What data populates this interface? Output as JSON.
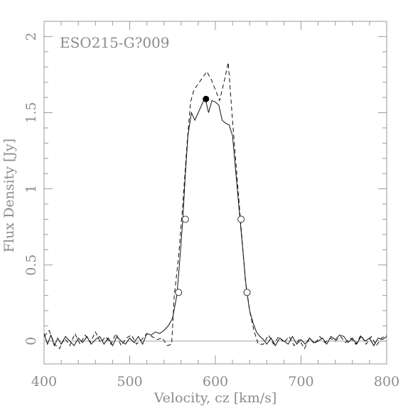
{
  "chart_data": {
    "type": "line",
    "title": "ESO215-G?009",
    "xlabel": "Velocity, cz [km/s]",
    "ylabel": "Flux Density [Jy]",
    "xlim": [
      400,
      800
    ],
    "ylim": [
      -0.15,
      2.1
    ],
    "x_ticks": [
      400,
      500,
      600,
      700,
      800
    ],
    "y_ticks": [
      0,
      0.5,
      1,
      1.5,
      2
    ],
    "grid": false,
    "series": [
      {
        "style": "solid",
        "points": [
          [
            400,
            0.05
          ],
          [
            404,
            -0.02
          ],
          [
            408,
            0.04
          ],
          [
            412,
            -0.03
          ],
          [
            416,
            0.02
          ],
          [
            420,
            -0.02
          ],
          [
            425,
            0.03
          ],
          [
            430,
            0.0
          ],
          [
            435,
            -0.03
          ],
          [
            440,
            0.02
          ],
          [
            445,
            -0.01
          ],
          [
            450,
            0.03
          ],
          [
            455,
            -0.02
          ],
          [
            460,
            0.01
          ],
          [
            465,
            0.03
          ],
          [
            470,
            -0.02
          ],
          [
            475,
            0.02
          ],
          [
            480,
            -0.03
          ],
          [
            485,
            0.03
          ],
          [
            490,
            0.0
          ],
          [
            495,
            -0.02
          ],
          [
            500,
            0.02
          ],
          [
            505,
            -0.01
          ],
          [
            510,
            0.03
          ],
          [
            515,
            -0.02
          ],
          [
            520,
            0.05
          ],
          [
            525,
            0.04
          ],
          [
            530,
            0.06
          ],
          [
            535,
            0.05
          ],
          [
            540,
            0.07
          ],
          [
            545,
            0.1
          ],
          [
            550,
            0.15
          ],
          [
            555,
            0.3
          ],
          [
            558,
            0.5
          ],
          [
            562,
            0.8
          ],
          [
            565,
            1.1
          ],
          [
            568,
            1.35
          ],
          [
            572,
            1.5
          ],
          [
            576,
            1.45
          ],
          [
            580,
            1.5
          ],
          [
            584,
            1.55
          ],
          [
            588,
            1.6
          ],
          [
            592,
            1.5
          ],
          [
            596,
            1.58
          ],
          [
            600,
            1.57
          ],
          [
            604,
            1.55
          ],
          [
            608,
            1.45
          ],
          [
            612,
            1.43
          ],
          [
            616,
            1.42
          ],
          [
            620,
            1.35
          ],
          [
            624,
            1.1
          ],
          [
            628,
            0.85
          ],
          [
            632,
            0.6
          ],
          [
            636,
            0.35
          ],
          [
            640,
            0.2
          ],
          [
            644,
            0.12
          ],
          [
            648,
            0.06
          ],
          [
            652,
            0.03
          ],
          [
            656,
            0.01
          ],
          [
            660,
            -0.02
          ],
          [
            665,
            0.02
          ],
          [
            670,
            -0.03
          ],
          [
            675,
            0.02
          ],
          [
            680,
            0.0
          ],
          [
            685,
            -0.02
          ],
          [
            690,
            0.03
          ],
          [
            695,
            -0.02
          ],
          [
            700,
            0.01
          ],
          [
            705,
            -0.02
          ],
          [
            710,
            0.02
          ],
          [
            715,
            -0.01
          ],
          [
            720,
            0.0
          ],
          [
            725,
            0.02
          ],
          [
            730,
            -0.02
          ],
          [
            735,
            0.03
          ],
          [
            740,
            0.01
          ],
          [
            745,
            0.04
          ],
          [
            750,
            0.03
          ],
          [
            755,
            -0.01
          ],
          [
            760,
            0.02
          ],
          [
            765,
            -0.02
          ],
          [
            770,
            0.03
          ],
          [
            775,
            0.0
          ],
          [
            780,
            0.02
          ],
          [
            785,
            -0.03
          ],
          [
            790,
            0.02
          ],
          [
            795,
            0.01
          ],
          [
            800,
            0.03
          ]
        ]
      },
      {
        "style": "dashed",
        "points": [
          [
            400,
            0.03
          ],
          [
            406,
            0.07
          ],
          [
            412,
            -0.02
          ],
          [
            418,
            -0.05
          ],
          [
            424,
            0.02
          ],
          [
            430,
            -0.03
          ],
          [
            436,
            0.05
          ],
          [
            442,
            -0.02
          ],
          [
            448,
            0.04
          ],
          [
            454,
            -0.01
          ],
          [
            460,
            0.06
          ],
          [
            466,
            -0.01
          ],
          [
            472,
            0.03
          ],
          [
            478,
            -0.02
          ],
          [
            484,
            0.05
          ],
          [
            490,
            -0.03
          ],
          [
            496,
            0.02
          ],
          [
            502,
            0.04
          ],
          [
            508,
            -0.02
          ],
          [
            514,
            0.01
          ],
          [
            520,
            0.05
          ],
          [
            526,
            0.03
          ],
          [
            532,
            0.01
          ],
          [
            538,
            0.02
          ],
          [
            544,
            -0.03
          ],
          [
            549,
            -0.02
          ],
          [
            552,
            0.3
          ],
          [
            557,
            0.55
          ],
          [
            562,
            0.9
          ],
          [
            567,
            1.3
          ],
          [
            571,
            1.57
          ],
          [
            575,
            1.65
          ],
          [
            585,
            1.73
          ],
          [
            590,
            1.77
          ],
          [
            595,
            1.72
          ],
          [
            600,
            1.65
          ],
          [
            605,
            1.58
          ],
          [
            610,
            1.7
          ],
          [
            615,
            1.83
          ],
          [
            620,
            1.45
          ],
          [
            625,
            1.1
          ],
          [
            630,
            0.75
          ],
          [
            635,
            0.4
          ],
          [
            640,
            0.2
          ],
          [
            645,
            0.07
          ],
          [
            650,
            -0.02
          ],
          [
            656,
            -0.02
          ],
          [
            662,
            0.04
          ],
          [
            668,
            -0.02
          ],
          [
            674,
            0.03
          ],
          [
            680,
            -0.01
          ],
          [
            686,
            0.03
          ],
          [
            692,
            -0.03
          ],
          [
            698,
            0.01
          ],
          [
            704,
            -0.05
          ],
          [
            710,
            0.02
          ],
          [
            716,
            -0.02
          ],
          [
            722,
            0.03
          ],
          [
            728,
            -0.01
          ],
          [
            734,
            0.02
          ],
          [
            740,
            0.0
          ],
          [
            746,
            0.03
          ],
          [
            752,
            -0.01
          ],
          [
            758,
            0.02
          ],
          [
            764,
            -0.02
          ],
          [
            770,
            0.04
          ],
          [
            776,
            -0.02
          ],
          [
            782,
            0.03
          ],
          [
            788,
            -0.03
          ],
          [
            794,
            0.02
          ],
          [
            800,
            0.04
          ]
        ]
      }
    ],
    "baseline": 0,
    "markers": {
      "filled": [
        [
          589,
          1.59
        ]
      ],
      "open": [
        [
          557,
          0.32
        ],
        [
          565,
          0.8
        ],
        [
          630,
          0.8
        ],
        [
          637,
          0.32
        ]
      ]
    }
  }
}
